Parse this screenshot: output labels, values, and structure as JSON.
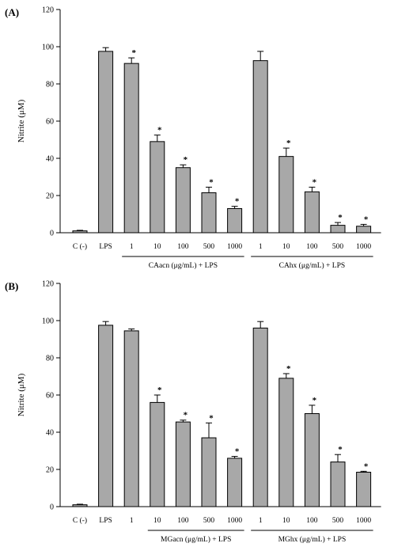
{
  "chart_data": [
    {
      "type": "bar",
      "panel_label": "(A)",
      "ylabel": "Nitrite (μM)",
      "ylim": [
        0,
        120
      ],
      "yticks": [
        0,
        20,
        40,
        60,
        80,
        100,
        120
      ],
      "yticks_text": [
        "0",
        "20",
        "40",
        "60",
        "80",
        "100",
        "120"
      ],
      "categories": [
        "C (-)",
        "LPS",
        "1",
        "10",
        "100",
        "500",
        "1000",
        "1",
        "10",
        "100",
        "500",
        "1000"
      ],
      "values": [
        1,
        97.5,
        91,
        49,
        35,
        21.5,
        13,
        92.5,
        41,
        22,
        4,
        3.5
      ],
      "errors": [
        0.3,
        2,
        3,
        3.5,
        1.5,
        3,
        1.2,
        5,
        4.5,
        2.5,
        1.5,
        1
      ],
      "significant": [
        "",
        "",
        "*",
        "*",
        "*",
        "*",
        "*",
        "",
        "*",
        "*",
        "*",
        "*"
      ],
      "groups": [
        {
          "label": "CAacn (μg/mL) + LPS",
          "start": 2,
          "end": 6
        },
        {
          "label": "CAhx (μg/mL) + LPS",
          "start": 7,
          "end": 11
        }
      ],
      "bar_color": "#a8a8a8"
    },
    {
      "type": "bar",
      "panel_label": "(B)",
      "ylabel": "Nitrite (μM)",
      "ylim": [
        0,
        120
      ],
      "yticks": [
        0,
        20,
        40,
        60,
        80,
        100,
        120
      ],
      "yticks_text": [
        "0",
        "20",
        "40",
        "60",
        "80",
        "100",
        "120"
      ],
      "categories": [
        "C (-)",
        "LPS",
        "1",
        "10",
        "100",
        "500",
        "1000",
        "1",
        "10",
        "100",
        "500",
        "1000"
      ],
      "values": [
        1,
        97.5,
        94.5,
        56,
        45.5,
        37,
        26,
        96,
        69,
        50,
        24,
        18.5
      ],
      "errors": [
        0.3,
        2,
        1,
        4,
        1,
        8,
        1,
        3.5,
        2.5,
        4.5,
        4,
        0.5
      ],
      "significant": [
        "",
        "",
        "",
        "*",
        "*",
        "*",
        "*",
        "",
        "*",
        "*",
        "*",
        "*"
      ],
      "groups": [
        {
          "label": "MGacn (μg/mL) + LPS",
          "start": 3,
          "end": 6
        },
        {
          "label": "MGhx (μg/mL) + LPS",
          "start": 7,
          "end": 11
        }
      ],
      "bar_color": "#a8a8a8"
    }
  ]
}
